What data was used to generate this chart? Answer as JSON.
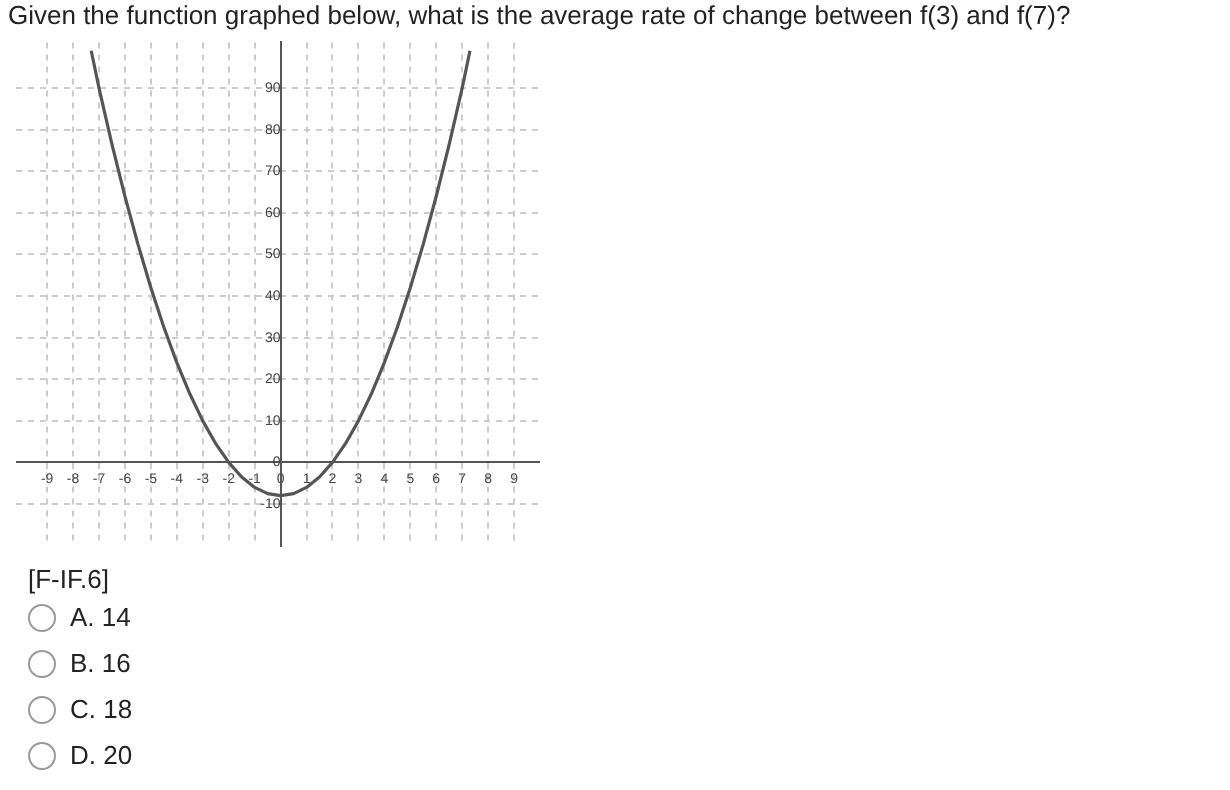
{
  "chart_data": {
    "type": "line",
    "title": "Given the function graphed below, what is the average rate of change between f(3) and f(7)?",
    "annotations": [
      "[F-IF.6]",
      "A. 14",
      "B. 16",
      "C. 18",
      "D. 20"
    ],
    "x": [
      -7.3,
      -7,
      -6.5,
      -6,
      -5.5,
      -5,
      -4.5,
      -4,
      -3.5,
      -3,
      -2.5,
      -2,
      -1.5,
      -1,
      -0.5,
      0,
      0.5,
      1,
      1.5,
      2,
      2.5,
      3,
      3.5,
      4,
      4.5,
      5,
      5.5,
      6,
      6.5,
      7,
      7.3
    ],
    "series": [
      {
        "color": "#555555",
        "values": [
          99,
          90,
          76.5,
          64,
          52.5,
          42,
          32.5,
          24,
          16.5,
          10,
          4.5,
          0,
          -3.5,
          -6,
          -7.5,
          -8,
          -7.5,
          -6,
          -3.5,
          0,
          4.5,
          10,
          16.5,
          24,
          32.5,
          42,
          52.5,
          64,
          76.5,
          90,
          99
        ]
      }
    ],
    "xlim": [
      -10.2,
      10
    ],
    "ylim": [
      -20,
      101
    ],
    "xticks": [
      -9,
      -8,
      -7,
      -6,
      -5,
      -4,
      -3,
      -2,
      -1,
      0,
      1,
      2,
      3,
      4,
      5,
      6,
      7,
      8,
      9
    ],
    "yticks": [
      -10,
      0,
      10,
      20,
      30,
      40,
      50,
      60,
      70,
      80,
      90
    ],
    "grid": true,
    "legend": false,
    "marker": "none",
    "line_style": "solid"
  }
}
